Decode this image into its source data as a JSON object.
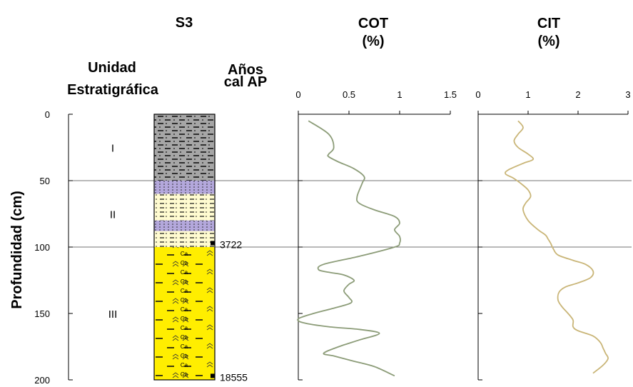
{
  "headers": {
    "core": "S3",
    "unit_line1": "Unidad",
    "unit_line2": "Estratigráfica",
    "ages_line1": "Años",
    "ages_line2": "cal AP",
    "cot_line1": "COT",
    "cot_line2": "(%)",
    "cit_line1": "CIT",
    "cit_line2": "(%)"
  },
  "ylabel": "Profundidad (cm)",
  "units": [
    {
      "label": "I",
      "top_cm": 0,
      "bottom_cm": 50
    },
    {
      "label": "II",
      "top_cm": 50,
      "bottom_cm": 100
    },
    {
      "label": "III",
      "top_cm": 100,
      "bottom_cm": 200
    }
  ],
  "ages": [
    {
      "label": "3722",
      "depth_cm": 97
    },
    {
      "label": "18555",
      "depth_cm": 197
    }
  ],
  "lithology": [
    {
      "top_cm": 0,
      "bottom_cm": 50,
      "color": "#a6a6a6",
      "pattern": "dash-dot-dark"
    },
    {
      "top_cm": 50,
      "bottom_cm": 60,
      "color": "#b4a8dc",
      "pattern": "dots"
    },
    {
      "top_cm": 60,
      "bottom_cm": 80,
      "color": "#fffbd0",
      "pattern": "dash-dot"
    },
    {
      "top_cm": 80,
      "bottom_cm": 88,
      "color": "#b4a8dc",
      "pattern": "dots"
    },
    {
      "top_cm": 88,
      "bottom_cm": 100,
      "color": "#fffbd0",
      "pattern": "dash-dot"
    },
    {
      "top_cm": 100,
      "bottom_cm": 200,
      "color": "#ffee00",
      "pattern": "calcrete"
    }
  ],
  "pattern_text": "Ca",
  "chart_data": [
    {
      "type": "line",
      "title": "COT (%)",
      "xlim": [
        0,
        1.5
      ],
      "xticks": [
        "0",
        "0.5",
        "1",
        "1.5"
      ],
      "ylim": [
        0,
        200
      ],
      "yticks": [
        "0",
        "50",
        "100",
        "150",
        "200"
      ],
      "color": "#8c9c78",
      "points": [
        [
          0.1,
          5
        ],
        [
          0.3,
          15
        ],
        [
          0.35,
          25
        ],
        [
          0.3,
          30
        ],
        [
          0.3,
          32
        ],
        [
          0.4,
          36
        ],
        [
          0.55,
          41
        ],
        [
          0.65,
          47
        ],
        [
          0.63,
          52
        ],
        [
          0.58,
          62
        ],
        [
          0.6,
          67
        ],
        [
          0.75,
          72
        ],
        [
          0.95,
          77
        ],
        [
          1.0,
          82
        ],
        [
          0.95,
          87
        ],
        [
          1.0,
          92
        ],
        [
          1.0,
          97
        ],
        [
          0.95,
          100
        ],
        [
          0.6,
          107
        ],
        [
          0.25,
          113
        ],
        [
          0.2,
          117
        ],
        [
          0.3,
          119
        ],
        [
          0.45,
          121
        ],
        [
          0.55,
          125
        ],
        [
          0.5,
          128
        ],
        [
          0.45,
          133
        ],
        [
          0.5,
          138
        ],
        [
          0.52,
          142
        ],
        [
          0.35,
          146
        ],
        [
          0.15,
          150
        ],
        [
          0.0,
          154
        ],
        [
          0.05,
          157
        ],
        [
          0.3,
          160
        ],
        [
          0.6,
          162
        ],
        [
          0.8,
          165
        ],
        [
          0.6,
          170
        ],
        [
          0.4,
          175
        ],
        [
          0.25,
          180
        ],
        [
          0.35,
          182
        ],
        [
          0.55,
          186
        ],
        [
          0.75,
          190
        ],
        [
          0.95,
          197
        ]
      ]
    },
    {
      "type": "line",
      "title": "CIT (%)",
      "xlim": [
        0,
        3
      ],
      "xticks": [
        "0",
        "1",
        "2",
        "3"
      ],
      "ylim": [
        0,
        200
      ],
      "yticks": [
        "0",
        "50",
        "100",
        "150",
        "200"
      ],
      "color": "#c9b577",
      "points": [
        [
          0.8,
          5
        ],
        [
          0.9,
          10
        ],
        [
          0.8,
          15
        ],
        [
          0.72,
          20
        ],
        [
          0.8,
          25
        ],
        [
          1.0,
          30
        ],
        [
          1.1,
          34
        ],
        [
          0.9,
          37
        ],
        [
          0.6,
          42
        ],
        [
          0.55,
          45
        ],
        [
          0.7,
          48
        ],
        [
          0.85,
          52
        ],
        [
          1.0,
          57
        ],
        [
          1.05,
          62
        ],
        [
          0.95,
          67
        ],
        [
          0.9,
          72
        ],
        [
          1.0,
          80
        ],
        [
          1.2,
          87
        ],
        [
          1.35,
          91
        ],
        [
          1.4,
          94
        ],
        [
          1.45,
          97
        ],
        [
          1.5,
          101
        ],
        [
          1.6,
          106
        ],
        [
          1.9,
          110
        ],
        [
          2.15,
          113
        ],
        [
          2.3,
          118
        ],
        [
          2.25,
          123
        ],
        [
          2.0,
          127
        ],
        [
          1.75,
          130
        ],
        [
          1.62,
          134
        ],
        [
          1.6,
          140
        ],
        [
          1.68,
          145
        ],
        [
          1.8,
          150
        ],
        [
          1.9,
          155
        ],
        [
          1.9,
          160
        ],
        [
          2.0,
          163
        ],
        [
          2.3,
          167
        ],
        [
          2.45,
          172
        ],
        [
          2.5,
          176
        ],
        [
          2.55,
          180
        ],
        [
          2.6,
          184
        ],
        [
          2.5,
          189
        ],
        [
          2.3,
          195
        ]
      ]
    }
  ]
}
